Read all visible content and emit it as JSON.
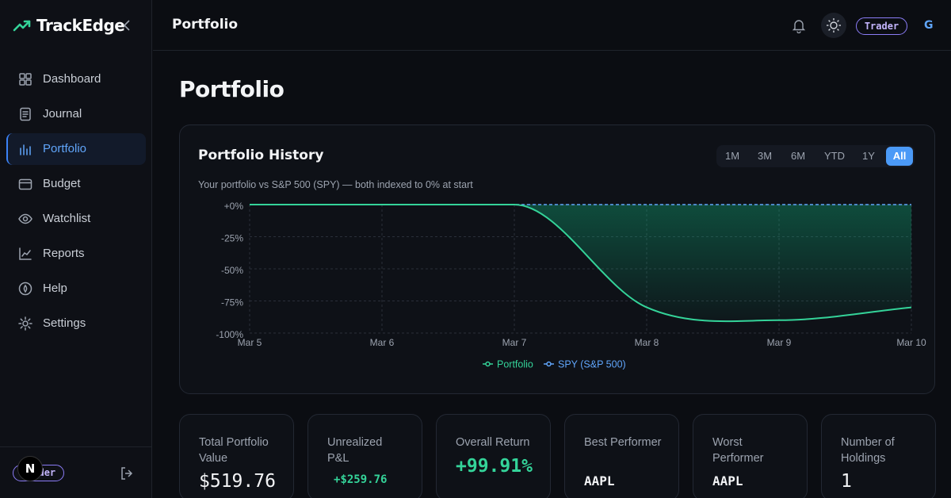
{
  "app": {
    "name": "TrackEdge"
  },
  "nav": [
    "Dashboard",
    "Journal",
    "Portfolio",
    "Budget",
    "Watchlist",
    "Reports",
    "Help",
    "Settings"
  ],
  "sidebar_footer": {
    "badge": "Trader",
    "avatar": "N"
  },
  "header": {
    "title": "Portfolio",
    "badge": "Trader",
    "avatar": "G"
  },
  "page_title": "Portfolio",
  "ranges": [
    "1M",
    "3M",
    "6M",
    "YTD",
    "1Y",
    "All"
  ],
  "chart_data": {
    "type": "line",
    "title": "Portfolio History",
    "subtitle": "Your portfolio vs S&P 500 (SPY) — both indexed to 0% at start",
    "categories": [
      "Mar 5",
      "Mar 6",
      "Mar 7",
      "Mar 8",
      "Mar 9",
      "Mar 10"
    ],
    "series": [
      {
        "name": "Portfolio",
        "color": "#34d399",
        "line_style": "solid",
        "values": [
          0,
          0,
          0,
          -80,
          -90,
          -80
        ]
      },
      {
        "name": "SPY (S&P 500)",
        "color": "#60a5fa",
        "line_style": "dashed",
        "values": [
          0,
          0,
          0,
          0,
          0,
          0
        ]
      }
    ],
    "ylim": [
      -100,
      0
    ],
    "yticks": [
      {
        "value": 0,
        "label": "+0%"
      },
      {
        "value": -25,
        "label": "-25%"
      },
      {
        "value": -50,
        "label": "-50%"
      },
      {
        "value": -75,
        "label": "-75%"
      },
      {
        "value": -100,
        "label": "-100%"
      }
    ],
    "grid": true
  },
  "stats": [
    {
      "label": "Total Portfolio Value",
      "value": "$519.76",
      "color": "#f3f4f6"
    },
    {
      "label": "Unrealized P&L",
      "value": "+$259.76",
      "color": "#34d399"
    },
    {
      "label": "Overall Return",
      "value": "+99.91%",
      "color": "#34d399"
    },
    {
      "label": "Best Performer",
      "value": "AAPL",
      "color": "#f3f4f6"
    },
    {
      "label": "Worst Performer",
      "value": "AAPL",
      "color": "#f3f4f6"
    },
    {
      "label": "Number of Holdings",
      "value": "1",
      "color": "#f3f4f6"
    }
  ]
}
